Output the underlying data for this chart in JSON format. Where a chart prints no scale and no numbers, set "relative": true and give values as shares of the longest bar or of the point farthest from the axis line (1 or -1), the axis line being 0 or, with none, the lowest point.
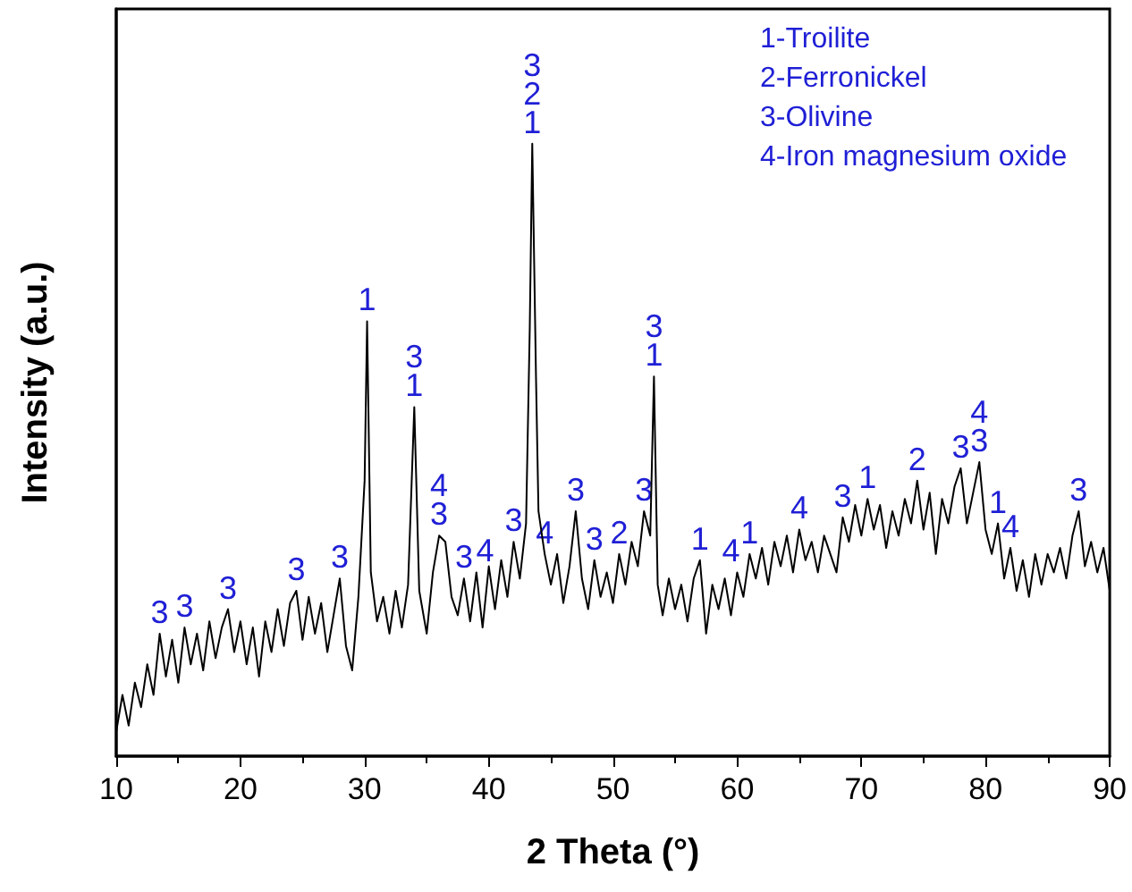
{
  "chart_data": {
    "type": "line",
    "relative": true,
    "xlabel": "2 Theta (°)",
    "ylabel": "Intensity (a.u.)",
    "xlim": [
      10,
      90
    ],
    "xticks": [
      10,
      20,
      30,
      40,
      50,
      60,
      70,
      80,
      90
    ],
    "marker": "none",
    "line_style": "solid",
    "grid": false,
    "series": [
      {
        "color": "#000000",
        "x": [
          10,
          10.5,
          11,
          11.5,
          12,
          12.5,
          13,
          13.5,
          14,
          14.5,
          15,
          15.5,
          16,
          16.5,
          17,
          17.5,
          18,
          18.5,
          19,
          19.5,
          20,
          20.5,
          21,
          21.5,
          22,
          22.5,
          23,
          23.5,
          24,
          24.5,
          25,
          25.5,
          26,
          26.5,
          27,
          27.5,
          28,
          28.5,
          29,
          29.5,
          30,
          30.2,
          30.5,
          31,
          31.5,
          32,
          32.5,
          33,
          33.5,
          34,
          34.4,
          35,
          35.5,
          36,
          36.5,
          37,
          37.5,
          38,
          38.5,
          39,
          39.5,
          40,
          40.5,
          41,
          41.5,
          42,
          42.5,
          43,
          43.3,
          43.5,
          43.8,
          44,
          44.5,
          45,
          45.5,
          46,
          46.5,
          47,
          47.5,
          48,
          48.5,
          49,
          49.5,
          50,
          50.5,
          51,
          51.5,
          52,
          52.5,
          53,
          53.3,
          53.6,
          54,
          54.5,
          55,
          55.5,
          56,
          56.5,
          57,
          57.5,
          58,
          58.5,
          59,
          59.5,
          60,
          60.5,
          61,
          61.5,
          62,
          62.5,
          63,
          63.5,
          64,
          64.5,
          65,
          65.5,
          66,
          66.5,
          67,
          67.5,
          68,
          68.5,
          69,
          69.5,
          70,
          70.5,
          71,
          71.5,
          72,
          72.5,
          73,
          73.5,
          74,
          74.5,
          75,
          75.5,
          76,
          76.5,
          77,
          77.5,
          78,
          78.5,
          79,
          79.5,
          80,
          80.5,
          81,
          81.5,
          82,
          82.5,
          83,
          83.5,
          84,
          84.5,
          85,
          85.5,
          86,
          86.5,
          87,
          87.5,
          88,
          88.5,
          89,
          89.5,
          90
        ],
        "values": [
          0.04,
          0.1,
          0.05,
          0.12,
          0.08,
          0.15,
          0.1,
          0.2,
          0.13,
          0.19,
          0.12,
          0.21,
          0.15,
          0.2,
          0.14,
          0.22,
          0.16,
          0.21,
          0.24,
          0.17,
          0.22,
          0.15,
          0.21,
          0.13,
          0.22,
          0.17,
          0.24,
          0.18,
          0.25,
          0.27,
          0.19,
          0.26,
          0.2,
          0.25,
          0.17,
          0.23,
          0.29,
          0.18,
          0.14,
          0.26,
          0.45,
          0.71,
          0.3,
          0.22,
          0.26,
          0.2,
          0.27,
          0.21,
          0.28,
          0.57,
          0.27,
          0.2,
          0.3,
          0.36,
          0.35,
          0.26,
          0.23,
          0.29,
          0.22,
          0.3,
          0.21,
          0.31,
          0.24,
          0.32,
          0.26,
          0.35,
          0.29,
          0.38,
          0.7,
          1,
          0.62,
          0.4,
          0.33,
          0.28,
          0.33,
          0.25,
          0.31,
          0.4,
          0.29,
          0.24,
          0.32,
          0.26,
          0.3,
          0.25,
          0.33,
          0.28,
          0.35,
          0.31,
          0.4,
          0.36,
          0.62,
          0.28,
          0.23,
          0.29,
          0.24,
          0.28,
          0.22,
          0.29,
          0.32,
          0.2,
          0.28,
          0.24,
          0.29,
          0.23,
          0.3,
          0.26,
          0.33,
          0.29,
          0.34,
          0.28,
          0.35,
          0.31,
          0.36,
          0.3,
          0.37,
          0.32,
          0.35,
          0.3,
          0.36,
          0.33,
          0.3,
          0.39,
          0.35,
          0.41,
          0.36,
          0.42,
          0.37,
          0.41,
          0.34,
          0.4,
          0.36,
          0.42,
          0.38,
          0.45,
          0.37,
          0.43,
          0.33,
          0.42,
          0.38,
          0.44,
          0.47,
          0.38,
          0.43,
          0.48,
          0.37,
          0.33,
          0.38,
          0.29,
          0.34,
          0.27,
          0.32,
          0.26,
          0.33,
          0.28,
          0.33,
          0.3,
          0.34,
          0.29,
          0.36,
          0.4,
          0.31,
          0.35,
          0.3,
          0.34,
          0.27
        ]
      }
    ],
    "annotations": [
      "1-Troilite",
      "2-Ferronickel",
      "3-Olivine",
      "4-Iron magnesium oxide",
      {
        "text": "3",
        "x": 13.5,
        "y": 0.2
      },
      {
        "text": "3",
        "x": 15.5,
        "y": 0.21
      },
      {
        "text": "3",
        "x": 19,
        "y": 0.24
      },
      {
        "text": "3",
        "x": 24.5,
        "y": 0.27
      },
      {
        "text": "3",
        "x": 28,
        "y": 0.29
      },
      {
        "text": "1",
        "x": 30.2,
        "y": 0.71
      },
      {
        "text": "1",
        "x": 34,
        "y": 0.57
      },
      {
        "text": "3",
        "x": 34,
        "y": 0.57
      },
      {
        "text": "3",
        "x": 36,
        "y": 0.36
      },
      {
        "text": "4",
        "x": 36,
        "y": 0.36
      },
      {
        "text": "3",
        "x": 38,
        "y": 0.29
      },
      {
        "text": "4",
        "x": 39.7,
        "y": 0.3
      },
      {
        "text": "3",
        "x": 42,
        "y": 0.35
      },
      {
        "text": "1",
        "x": 43.5,
        "y": 1
      },
      {
        "text": "2",
        "x": 43.5,
        "y": 1
      },
      {
        "text": "3",
        "x": 43.5,
        "y": 1
      },
      {
        "text": "4",
        "x": 44.5,
        "y": 0.33
      },
      {
        "text": "3",
        "x": 47,
        "y": 0.4
      },
      {
        "text": "3",
        "x": 48.5,
        "y": 0.32
      },
      {
        "text": "2",
        "x": 50.5,
        "y": 0.33
      },
      {
        "text": "3",
        "x": 52.5,
        "y": 0.4
      },
      {
        "text": "1",
        "x": 53.3,
        "y": 0.62
      },
      {
        "text": "3",
        "x": 53.3,
        "y": 0.62
      },
      {
        "text": "1",
        "x": 57,
        "y": 0.32
      },
      {
        "text": "4",
        "x": 59.5,
        "y": 0.3
      },
      {
        "text": "1",
        "x": 61,
        "y": 0.33
      },
      {
        "text": "4",
        "x": 65,
        "y": 0.37
      },
      {
        "text": "3",
        "x": 68.5,
        "y": 0.39
      },
      {
        "text": "1",
        "x": 70.5,
        "y": 0.42
      },
      {
        "text": "2",
        "x": 74.5,
        "y": 0.45
      },
      {
        "text": "3",
        "x": 78,
        "y": 0.47
      },
      {
        "text": "3",
        "x": 79.5,
        "y": 0.48
      },
      {
        "text": "4",
        "x": 79.5,
        "y": 0.48
      },
      {
        "text": "1",
        "x": 81,
        "y": 0.38
      },
      {
        "text": "4",
        "x": 82,
        "y": 0.34
      },
      {
        "text": "3",
        "x": 87.5,
        "y": 0.4
      }
    ]
  }
}
